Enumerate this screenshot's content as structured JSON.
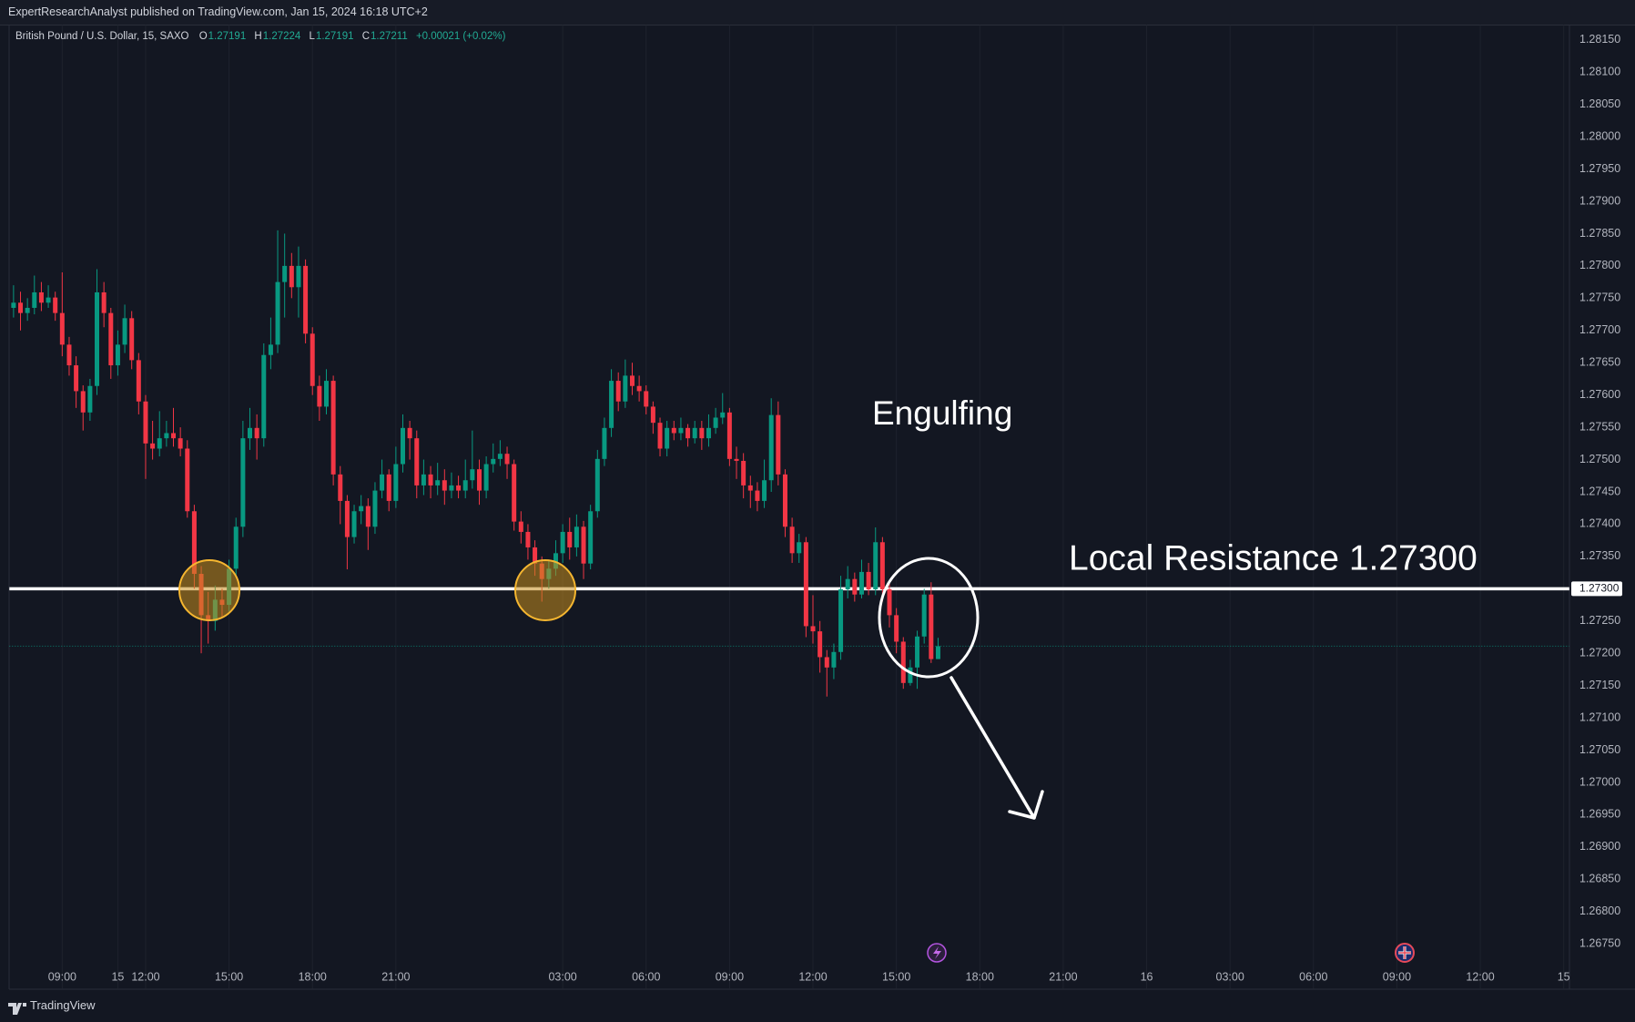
{
  "header": "ExpertResearchAnalyst published on TradingView.com, Jan 15, 2024 16:18 UTC+2",
  "footer": "TradingView",
  "chart_data": {
    "type": "candlestick",
    "symbol": "British Pound / U.S. Dollar, 15, SAXO",
    "ohlc_labels": [
      "O",
      "H",
      "L",
      "C"
    ],
    "change": "+0.00021 (+0.02%)",
    "up_color": "#089981",
    "down_color": "#f23645",
    "grid": true,
    "annotations": [
      "Engulfing",
      "Local Resistance 1.27300"
    ],
    "level": {
      "value": 1.273,
      "label": "1.27300"
    },
    "xlim": [
      -0.6,
      223.8
    ],
    "ylim": [
      1.2668,
      1.28173
    ],
    "xticks": [
      {
        "value": 7,
        "label": "09:00"
      },
      {
        "value": 19,
        "label": "12:00"
      },
      {
        "value": 31,
        "label": "15:00"
      },
      {
        "value": 43,
        "label": "18:00"
      },
      {
        "value": 55,
        "label": "21:00"
      },
      15,
      {
        "value": 79,
        "label": "03:00"
      },
      {
        "value": 91,
        "label": "06:00"
      },
      {
        "value": 103,
        "label": "09:00"
      },
      {
        "value": 115,
        "label": "12:00"
      },
      {
        "value": 127,
        "label": "15:00"
      },
      {
        "value": 139,
        "label": "18:00"
      },
      {
        "value": 151,
        "label": "21:00"
      },
      {
        "value": 163,
        "label": "16"
      },
      {
        "value": 175,
        "label": "03:00"
      },
      {
        "value": 187,
        "label": "06:00"
      },
      {
        "value": 199,
        "label": "09:00"
      },
      {
        "value": 211,
        "label": "12:00"
      },
      {
        "value": 223,
        "label": "15"
      }
    ],
    "yticks": [
      {
        "value": 1.2815,
        "label": "1.28150"
      },
      {
        "value": 1.281,
        "label": "1.28100"
      },
      {
        "value": 1.2805,
        "label": "1.28050"
      },
      {
        "value": 1.28,
        "label": "1.28000"
      },
      {
        "value": 1.2795,
        "label": "1.27950"
      },
      {
        "value": 1.279,
        "label": "1.27900"
      },
      {
        "value": 1.2785,
        "label": "1.27850"
      },
      {
        "value": 1.278,
        "label": "1.27800"
      },
      {
        "value": 1.2775,
        "label": "1.27750"
      },
      {
        "value": 1.277,
        "label": "1.27700"
      },
      {
        "value": 1.2765,
        "label": "1.27650"
      },
      {
        "value": 1.276,
        "label": "1.27600"
      },
      {
        "value": 1.2755,
        "label": "1.27550"
      },
      {
        "value": 1.275,
        "label": "1.27500"
      },
      {
        "value": 1.2745,
        "label": "1.27450"
      },
      {
        "value": 1.274,
        "label": "1.27400"
      },
      {
        "value": 1.2735,
        "label": "1.27350"
      },
      {
        "value": 1.273,
        "label": "1.27300"
      },
      {
        "value": 1.2725,
        "label": "1.27250"
      },
      {
        "value": 1.272,
        "label": "1.27200"
      },
      {
        "value": 1.2715,
        "label": "1.27150"
      },
      {
        "value": 1.271,
        "label": "1.27100"
      },
      {
        "value": 1.2705,
        "label": "1.27050"
      },
      {
        "value": 1.27,
        "label": "1.27000"
      },
      {
        "value": 1.2695,
        "label": "1.26950"
      },
      {
        "value": 1.269,
        "label": "1.26900"
      },
      {
        "value": 1.2685,
        "label": "1.26850"
      },
      {
        "value": 1.268,
        "label": "1.26800"
      },
      {
        "value": 1.2675,
        "label": "1.26750"
      }
    ],
    "open": [
      1.27735,
      1.27743,
      1.27727,
      1.27735,
      1.27759,
      1.27743,
      1.27751,
      1.27727,
      1.27678,
      1.27646,
      1.27606,
      1.27573,
      1.27614,
      1.27759,
      1.27727,
      1.27646,
      1.27678,
      1.27719,
      1.27654,
      1.2759,
      1.27525,
      1.27517,
      1.27533,
      1.27541,
      1.27533,
      1.27517,
      1.2742,
      1.27323,
      1.27259,
      1.2725,
      1.27283,
      1.27275,
      1.27331,
      1.27396,
      1.27533,
      1.27549,
      1.27533,
      1.27662,
      1.27678,
      1.27775,
      1.278,
      1.27767,
      1.278,
      1.27695,
      1.27614,
      1.27582,
      1.27622,
      1.27477,
      1.27436,
      1.2738,
      1.2742,
      1.27428,
      1.27396,
      1.27452,
      1.27477,
      1.27436,
      1.27493,
      1.27549,
      1.27533,
      1.2746,
      1.27477,
      1.2746,
      1.27468,
      1.27452,
      1.2746,
      1.27452,
      1.27468,
      1.27485,
      1.27452,
      1.27493,
      1.27501,
      1.27509,
      1.27493,
      1.27404,
      1.27388,
      1.27364,
      1.27339,
      1.27315,
      1.27331,
      1.27355,
      1.27388,
      1.27364,
      1.27396,
      1.27339,
      1.2742,
      1.27501,
      1.27549,
      1.27622,
      1.2759,
      1.2763,
      1.27614,
      1.27606,
      1.27582,
      1.27557,
      1.27517,
      1.27549,
      1.27541,
      1.27549,
      1.27533,
      1.27549,
      1.27533,
      1.27549,
      1.27565,
      1.27573,
      1.27501,
      1.27498,
      1.2746,
      1.27452,
      1.27436,
      1.27468,
      1.27569,
      1.27477,
      1.27396,
      1.27355,
      1.27372,
      1.27242,
      1.27234,
      1.27194,
      1.27178,
      1.27202,
      1.27299,
      1.27315,
      1.27291,
      1.27326,
      1.27299,
      1.27372,
      1.27299,
      1.27259,
      1.27218,
      1.27154,
      1.27178,
      1.27226,
      1.27291,
      1.27191
    ],
    "high": [
      1.2777,
      1.2776,
      1.2775,
      1.27785,
      1.27775,
      1.2777,
      1.2776,
      1.2779,
      1.2769,
      1.2766,
      1.27615,
      1.27625,
      1.27795,
      1.27775,
      1.27735,
      1.277,
      1.2774,
      1.2773,
      1.27665,
      1.276,
      1.2756,
      1.27575,
      1.2756,
      1.2758,
      1.2755,
      1.2753,
      1.2743,
      1.27335,
      1.27295,
      1.27305,
      1.273,
      1.27345,
      1.2741,
      1.2756,
      1.2758,
      1.2757,
      1.2768,
      1.2772,
      1.27855,
      1.2785,
      1.2782,
      1.2783,
      1.2781,
      1.27705,
      1.2763,
      1.2764,
      1.2763,
      1.2749,
      1.27445,
      1.2743,
      1.27445,
      1.2744,
      1.27465,
      1.275,
      1.27485,
      1.2752,
      1.2757,
      1.2756,
      1.27545,
      1.275,
      1.2749,
      1.27495,
      1.27485,
      1.2748,
      1.27475,
      1.275,
      1.27545,
      1.275,
      1.27505,
      1.27525,
      1.2753,
      1.2752,
      1.275,
      1.2742,
      1.274,
      1.27375,
      1.2735,
      1.27345,
      1.27375,
      1.274,
      1.2741,
      1.27415,
      1.27405,
      1.2743,
      1.27515,
      1.27565,
      1.2764,
      1.27635,
      1.27655,
      1.2765,
      1.2763,
      1.27615,
      1.2759,
      1.27565,
      1.2756,
      1.2756,
      1.27565,
      1.27555,
      1.2756,
      1.2756,
      1.2757,
      1.2758,
      1.27603,
      1.2758,
      1.2752,
      1.2751,
      1.27475,
      1.27465,
      1.275,
      1.27595,
      1.2759,
      1.27485,
      1.2741,
      1.27385,
      1.2738,
      1.2729,
      1.2725,
      1.27205,
      1.27215,
      1.2732,
      1.27335,
      1.27325,
      1.27345,
      1.2734,
      1.27395,
      1.2738,
      1.2731,
      1.2727,
      1.27225,
      1.2719,
      1.27235,
      1.273,
      1.2731,
      1.27224
    ],
    "low": [
      1.2772,
      1.277,
      1.27715,
      1.27725,
      1.2773,
      1.27735,
      1.27715,
      1.2766,
      1.2763,
      1.2758,
      1.27545,
      1.2756,
      1.276,
      1.27705,
      1.27625,
      1.2763,
      1.27665,
      1.2764,
      1.2757,
      1.2747,
      1.275,
      1.27505,
      1.2752,
      1.2752,
      1.27505,
      1.2741,
      1.273,
      1.272,
      1.27215,
      1.27235,
      1.27255,
      1.27265,
      1.2732,
      1.2738,
      1.27515,
      1.275,
      1.2752,
      1.2764,
      1.27665,
      1.2772,
      1.2775,
      1.2772,
      1.2768,
      1.276,
      1.2756,
      1.2757,
      1.2746,
      1.274,
      1.2733,
      1.2737,
      1.274,
      1.2736,
      1.27385,
      1.2744,
      1.2742,
      1.27425,
      1.2748,
      1.275,
      1.2744,
      1.27445,
      1.2744,
      1.27445,
      1.2743,
      1.2744,
      1.2744,
      1.2744,
      1.27455,
      1.2743,
      1.2744,
      1.2748,
      1.2749,
      1.2747,
      1.2739,
      1.2737,
      1.27345,
      1.2732,
      1.2728,
      1.273,
      1.2732,
      1.2734,
      1.27345,
      1.2735,
      1.27315,
      1.2733,
      1.2741,
      1.2749,
      1.27535,
      1.27575,
      1.2758,
      1.276,
      1.2759,
      1.2757,
      1.2754,
      1.27505,
      1.27505,
      1.2753,
      1.2753,
      1.2752,
      1.27525,
      1.27515,
      1.2752,
      1.2754,
      1.27555,
      1.2749,
      1.2747,
      1.2744,
      1.27425,
      1.2742,
      1.27425,
      1.2745,
      1.2746,
      1.2738,
      1.2734,
      1.2734,
      1.27225,
      1.27215,
      1.2717,
      1.27133,
      1.2716,
      1.2719,
      1.27285,
      1.2728,
      1.27285,
      1.2729,
      1.2729,
      1.2728,
      1.2724,
      1.272,
      1.27145,
      1.2715,
      1.27145,
      1.27215,
      1.27185,
      1.27191
    ],
    "close": [
      1.27743,
      1.27727,
      1.27735,
      1.27759,
      1.27743,
      1.27751,
      1.27727,
      1.27678,
      1.27646,
      1.27606,
      1.27573,
      1.27614,
      1.27759,
      1.27727,
      1.27646,
      1.27678,
      1.27719,
      1.27654,
      1.2759,
      1.27525,
      1.27517,
      1.27533,
      1.27541,
      1.27533,
      1.27517,
      1.2742,
      1.27323,
      1.27259,
      1.2725,
      1.27283,
      1.27275,
      1.27331,
      1.27396,
      1.27533,
      1.27549,
      1.27533,
      1.27662,
      1.27678,
      1.27775,
      1.278,
      1.27767,
      1.278,
      1.27695,
      1.27614,
      1.27582,
      1.27622,
      1.27477,
      1.27436,
      1.2738,
      1.2742,
      1.27428,
      1.27396,
      1.27452,
      1.27477,
      1.27436,
      1.27493,
      1.27549,
      1.27533,
      1.2746,
      1.27477,
      1.2746,
      1.27468,
      1.27452,
      1.2746,
      1.27452,
      1.27468,
      1.27485,
      1.27452,
      1.27493,
      1.27501,
      1.27509,
      1.27493,
      1.27404,
      1.27388,
      1.27364,
      1.27339,
      1.27315,
      1.27331,
      1.27355,
      1.27388,
      1.27364,
      1.27396,
      1.27339,
      1.2742,
      1.27501,
      1.27549,
      1.27622,
      1.2759,
      1.2763,
      1.27614,
      1.27606,
      1.27582,
      1.27557,
      1.27517,
      1.27549,
      1.27541,
      1.27549,
      1.27533,
      1.27549,
      1.27533,
      1.27549,
      1.27565,
      1.27573,
      1.27501,
      1.27498,
      1.2746,
      1.27452,
      1.27436,
      1.27468,
      1.27569,
      1.27477,
      1.27396,
      1.27355,
      1.27372,
      1.27242,
      1.27234,
      1.27194,
      1.27178,
      1.27202,
      1.27299,
      1.27315,
      1.27291,
      1.27326,
      1.27299,
      1.27372,
      1.27299,
      1.27259,
      1.27218,
      1.27154,
      1.27178,
      1.27226,
      1.27291,
      1.27191,
      1.27211
    ]
  }
}
